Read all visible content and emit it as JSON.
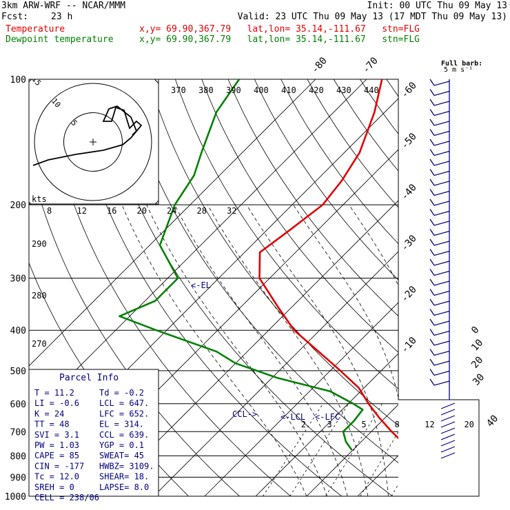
{
  "header": {
    "model": "3km ARW-WRF -- NCAR/MMM",
    "init": "Init: 00 UTC Thu 09 May 13",
    "fcst_label": "Fcst:",
    "fcst_value": "23 h",
    "valid": "Valid: 23 UTC Thu 09 May 13 (17 MDT Thu 09 May 13)",
    "temp_label": "Temperature",
    "temp_info": "x,y= 69.90,367.79   lat,lon= 35.14,-111.67   stn=FLG",
    "dew_label": "Dewpoint temperature",
    "dew_info": "x,y= 69.90,367.79   lat,lon= 35.14,-111.67   stn=FLG"
  },
  "colors": {
    "temperature": "#e00000",
    "dewpoint": "#008000",
    "annotation": "#000080",
    "text": "#000000"
  },
  "chart_data": {
    "type": "line",
    "pressure_labels": [
      "100",
      "200",
      "300",
      "400",
      "500",
      "600",
      "700",
      "800",
      "900",
      "1000"
    ],
    "isotherm_labels": [
      "-80",
      "-70",
      "-60",
      "-50",
      "-40",
      "-30",
      "-20",
      "-10",
      "0",
      "10",
      "20",
      "30",
      "40"
    ],
    "mixing_ratio_labels": [
      "2",
      "3",
      "5",
      "8",
      "12",
      "20"
    ],
    "theta_labels": [
      "370",
      "380",
      "390",
      "400",
      "410",
      "420",
      "430",
      "440"
    ],
    "theta_side_labels": [
      "290",
      "280",
      "270"
    ],
    "hodograph": {
      "unit": "kts",
      "ring_labels": [
        "5",
        "10",
        "15"
      ],
      "speed_labels": [
        "8",
        "12",
        "16",
        "20",
        "24",
        "28",
        "32"
      ]
    },
    "barb_legend": {
      "title": "Full barb:",
      "value": "5 m s⁻¹"
    },
    "annotations": {
      "el": "<-EL",
      "ccl": "CCL->",
      "lcl": "<-LCL",
      "lfc": "<-LFC"
    },
    "series": [
      {
        "name": "Temperature",
        "values": [
          [
            100,
            -67
          ],
          [
            120,
            -62
          ],
          [
            150,
            -57
          ],
          [
            175,
            -55
          ],
          [
            200,
            -54
          ],
          [
            230,
            -55.5
          ],
          [
            260,
            -57
          ],
          [
            300,
            -52
          ],
          [
            350,
            -43
          ],
          [
            400,
            -35
          ],
          [
            450,
            -26
          ],
          [
            500,
            -18
          ],
          [
            550,
            -11
          ],
          [
            600,
            -6
          ],
          [
            650,
            -1
          ],
          [
            700,
            4
          ],
          [
            750,
            9
          ],
          [
            775,
            11.2
          ]
        ]
      },
      {
        "name": "Dewpoint temperature",
        "values": [
          [
            100,
            -95
          ],
          [
            120,
            -93
          ],
          [
            150,
            -88
          ],
          [
            170,
            -85
          ],
          [
            200,
            -83
          ],
          [
            250,
            -78
          ],
          [
            300,
            -68
          ],
          [
            340,
            -68
          ],
          [
            370,
            -72
          ],
          [
            400,
            -62
          ],
          [
            450,
            -46
          ],
          [
            480,
            -40
          ],
          [
            520,
            -29
          ],
          [
            560,
            -16
          ],
          [
            600,
            -9
          ],
          [
            620,
            -6
          ],
          [
            660,
            -5.5
          ],
          [
            700,
            -5.5
          ],
          [
            740,
            -3
          ],
          [
            775,
            -0.2
          ]
        ]
      }
    ],
    "parcel_info": {
      "title": "Parcel Info",
      "rows": [
        [
          "T  =   11.2",
          "Td  = -0.2"
        ],
        [
          "LI  =  -0.6",
          "LCL = 647."
        ],
        [
          "K   =    24",
          "LFC = 652."
        ],
        [
          "TT  =    48",
          "EL  = 314."
        ],
        [
          "SVI =   3.1",
          "CCL = 639."
        ],
        [
          "PW  =  1.03",
          "YGP =  0.1"
        ],
        [
          "CAPE =   85",
          "SWEAT=  45"
        ],
        [
          "CIN =  -177",
          "HWBZ= 3109."
        ],
        [
          "Tc  =  12.0",
          "SHEAR=  18."
        ],
        [
          "SREH =    0",
          "LAPSE=  8.0"
        ],
        [
          "CELL = 238/06",
          ""
        ]
      ]
    }
  }
}
